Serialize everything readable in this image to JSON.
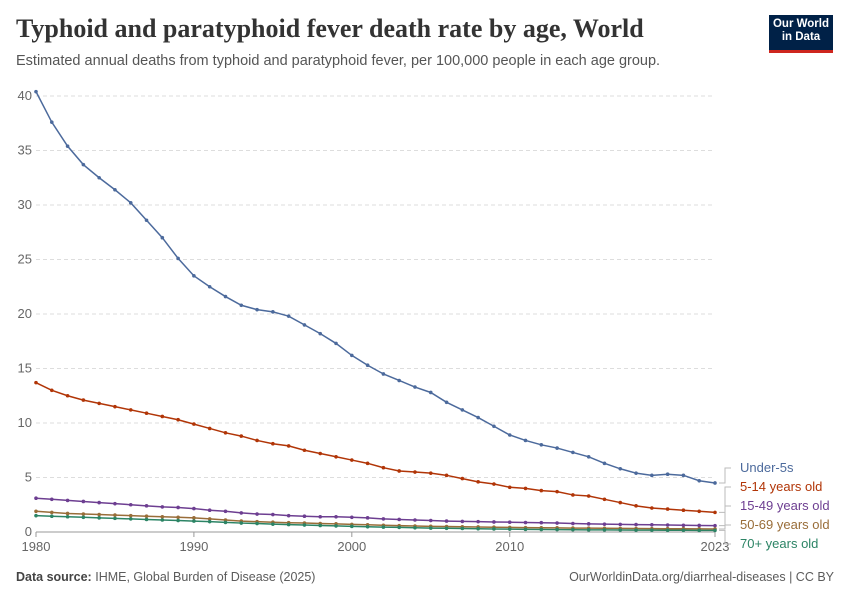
{
  "header": {
    "title": "Typhoid and paratyphoid fever death rate by age, World",
    "subtitle": "Estimated annual deaths from typhoid and paratyphoid fever, per 100,000 people in each age group.",
    "logo": "Our World in Data"
  },
  "footer": {
    "source_label": "Data source:",
    "source": "IHME, Global Burden of Disease (2025)",
    "right": "OurWorldinData.org/diarrheal-diseases | CC BY"
  },
  "chart_data": {
    "type": "line",
    "title": "Typhoid and paratyphoid fever death rate by age, World",
    "xlim": [
      1980,
      2023
    ],
    "ylim": [
      0,
      40
    ],
    "xticks": [
      "1980",
      "1990",
      "2000",
      "2010",
      "2023"
    ],
    "yticks": [
      "0",
      "5",
      "10",
      "15",
      "20",
      "25",
      "30",
      "35",
      "40"
    ],
    "grid": true,
    "legend": "right (line-end labels)",
    "x": [
      1980,
      1981,
      1982,
      1983,
      1984,
      1985,
      1986,
      1987,
      1988,
      1989,
      1990,
      1991,
      1992,
      1993,
      1994,
      1995,
      1996,
      1997,
      1998,
      1999,
      2000,
      2001,
      2002,
      2003,
      2004,
      2005,
      2006,
      2007,
      2008,
      2009,
      2010,
      2011,
      2012,
      2013,
      2014,
      2015,
      2016,
      2017,
      2018,
      2019,
      2020,
      2021,
      2022,
      2023
    ],
    "series": [
      {
        "name": "Under-5s",
        "color": "#4c6a9c",
        "values": [
          40.4,
          37.6,
          35.4,
          33.7,
          32.5,
          31.4,
          30.2,
          28.6,
          27.0,
          25.1,
          23.5,
          22.5,
          21.6,
          20.8,
          20.4,
          20.2,
          19.8,
          19.0,
          18.2,
          17.3,
          16.2,
          15.3,
          14.5,
          13.9,
          13.3,
          12.8,
          11.9,
          11.2,
          10.5,
          9.7,
          8.9,
          8.4,
          8.0,
          7.7,
          7.3,
          6.9,
          6.3,
          5.8,
          5.4,
          5.2,
          5.3,
          5.2,
          4.7,
          4.5
        ]
      },
      {
        "name": "5-14 years old",
        "color": "#b13507",
        "values": [
          13.7,
          13.0,
          12.5,
          12.1,
          11.8,
          11.5,
          11.2,
          10.9,
          10.6,
          10.3,
          9.9,
          9.5,
          9.1,
          8.8,
          8.4,
          8.1,
          7.9,
          7.5,
          7.2,
          6.9,
          6.6,
          6.3,
          5.9,
          5.6,
          5.5,
          5.4,
          5.2,
          4.9,
          4.6,
          4.4,
          4.1,
          4.0,
          3.8,
          3.7,
          3.4,
          3.3,
          3.0,
          2.7,
          2.4,
          2.2,
          2.1,
          2.0,
          1.9,
          1.8
        ]
      },
      {
        "name": "15-49 years old",
        "color": "#6d3e91",
        "values": [
          3.1,
          3.0,
          2.9,
          2.8,
          2.7,
          2.6,
          2.5,
          2.4,
          2.3,
          2.25,
          2.15,
          2.0,
          1.9,
          1.75,
          1.65,
          1.6,
          1.5,
          1.45,
          1.4,
          1.4,
          1.35,
          1.3,
          1.2,
          1.15,
          1.1,
          1.05,
          1.0,
          0.97,
          0.95,
          0.92,
          0.9,
          0.87,
          0.85,
          0.82,
          0.78,
          0.75,
          0.72,
          0.7,
          0.68,
          0.66,
          0.64,
          0.62,
          0.6,
          0.58
        ]
      },
      {
        "name": "50-69 years old",
        "color": "#996d39",
        "values": [
          1.9,
          1.8,
          1.7,
          1.65,
          1.6,
          1.55,
          1.5,
          1.45,
          1.4,
          1.35,
          1.3,
          1.2,
          1.1,
          1.0,
          0.95,
          0.9,
          0.85,
          0.82,
          0.78,
          0.75,
          0.7,
          0.66,
          0.62,
          0.58,
          0.55,
          0.52,
          0.5,
          0.48,
          0.46,
          0.44,
          0.42,
          0.4,
          0.39,
          0.38,
          0.36,
          0.35,
          0.34,
          0.33,
          0.32,
          0.31,
          0.3,
          0.3,
          0.29,
          0.28
        ]
      },
      {
        "name": "70+ years old",
        "color": "#2c8465",
        "values": [
          1.5,
          1.45,
          1.4,
          1.35,
          1.3,
          1.25,
          1.2,
          1.15,
          1.1,
          1.05,
          1.0,
          0.95,
          0.88,
          0.82,
          0.78,
          0.72,
          0.68,
          0.64,
          0.6,
          0.56,
          0.52,
          0.48,
          0.45,
          0.42,
          0.39,
          0.36,
          0.34,
          0.32,
          0.3,
          0.28,
          0.26,
          0.24,
          0.23,
          0.22,
          0.21,
          0.2,
          0.19,
          0.18,
          0.17,
          0.17,
          0.16,
          0.16,
          0.15,
          0.15
        ]
      }
    ]
  }
}
